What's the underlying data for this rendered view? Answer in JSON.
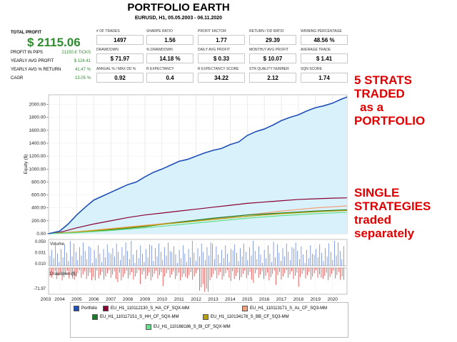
{
  "header": {
    "title": "PORTFOLIO EARTH",
    "subtitle": "EURUSD, H1, 05.05.2003 - 06.11.2020"
  },
  "summary": {
    "total_profit_label": "TOTAL PROFIT",
    "total_profit_value": "$ 2115.06",
    "rows": [
      {
        "label": "PROFIT IN PIPS",
        "value": "21150.6 TICKS"
      },
      {
        "label": "YEARLY AVG PROFIT",
        "value": "$ 124.41"
      },
      {
        "label": "YEARLY AVG % RETURN",
        "value": "41.47 %"
      },
      {
        "label": "CAGR",
        "value": "13.05 %"
      }
    ]
  },
  "metrics": [
    {
      "label": "# OF TRADES",
      "value": "1497"
    },
    {
      "label": "SHARPE RATIO",
      "value": "1.56"
    },
    {
      "label": "PROFIT FACTOR",
      "value": "1.77"
    },
    {
      "label": "RETURN / DD RATIO",
      "value": "29.39"
    },
    {
      "label": "WINNING PERCENTAGE",
      "value": "48.56 %"
    },
    {
      "label": "DRAWDOWN",
      "value": "$ 71.97"
    },
    {
      "label": "% DRAWDOWN",
      "value": "14.18 %"
    },
    {
      "label": "DAILY AVG PROFIT",
      "value": "$ 0.33"
    },
    {
      "label": "MONTHLY AVG PROFIT",
      "value": "$ 10.07"
    },
    {
      "label": "AVERAGE TRADE",
      "value": "$ 1.41"
    },
    {
      "label": "ANNUAL % / MAX DD %",
      "value": "0.92"
    },
    {
      "label": "R EXPECTANCY",
      "value": "0.4"
    },
    {
      "label": "R EXPECTANCY SCORE",
      "value": "34.22"
    },
    {
      "label": "STR QUALITY NUMBER",
      "value": "2.12"
    },
    {
      "label": "SQN SCORE",
      "value": "1.74"
    }
  ],
  "annotations": {
    "portfolio": [
      "5 STRATS",
      "TRADED",
      "as a",
      "PORTFOLIO"
    ],
    "single": [
      "SINGLE",
      "STRATEGIES",
      "traded",
      "separately"
    ]
  },
  "chart_data": {
    "type": "line",
    "ylabel": "Equity ($)",
    "y_ticks": [
      "0.00",
      "200.00",
      "400.00",
      "600.00",
      "800.00",
      "1000.00",
      "1200.00",
      "1400.00",
      "1600.00",
      "1800.00",
      "2000.00"
    ],
    "ylim": [
      0,
      2150
    ],
    "x_range": [
      2003.35,
      2020.85
    ],
    "x_ticks": [
      "2003",
      "2004",
      "2005",
      "2006",
      "2007",
      "2008",
      "2009",
      "2010",
      "2011",
      "2012",
      "2013",
      "2014",
      "2015",
      "2016",
      "2017",
      "2018",
      "2019",
      "2020"
    ],
    "series": [
      {
        "name": "Portfolio",
        "color": "#1f4fb4",
        "x": [
          2003.35,
          2004.0,
          2004.5,
          2005.0,
          2005.5,
          2006.0,
          2006.5,
          2007.0,
          2007.5,
          2008.0,
          2008.5,
          2009.0,
          2009.5,
          2010.0,
          2010.5,
          2011.0,
          2011.5,
          2012.0,
          2012.5,
          2013.0,
          2013.5,
          2014.0,
          2014.5,
          2015.0,
          2015.5,
          2016.0,
          2016.5,
          2017.0,
          2017.5,
          2018.0,
          2018.5,
          2019.0,
          2019.5,
          2020.0,
          2020.5,
          2020.85
        ],
        "y": [
          0,
          40,
          150,
          290,
          410,
          520,
          580,
          640,
          700,
          760,
          800,
          880,
          950,
          1000,
          1060,
          1120,
          1150,
          1200,
          1250,
          1290,
          1320,
          1380,
          1420,
          1520,
          1580,
          1620,
          1680,
          1750,
          1800,
          1840,
          1900,
          1950,
          1980,
          2020,
          2080,
          2115
        ]
      },
      {
        "name": "EU_H1_110112130_S_HA_CF_SQX-MM",
        "color": "#8b0033",
        "x": [
          2003.35,
          2004.0,
          2005.0,
          2006.0,
          2007.0,
          2008.0,
          2009.0,
          2010.0,
          2011.0,
          2012.0,
          2013.0,
          2014.0,
          2015.0,
          2016.0,
          2017.0,
          2018.0,
          2019.0,
          2020.0,
          2020.85
        ],
        "y": [
          0,
          20,
          90,
          150,
          200,
          250,
          290,
          320,
          350,
          380,
          410,
          440,
          470,
          490,
          510,
          530,
          540,
          550,
          555
        ]
      },
      {
        "name": "EU_H1_110113171_S_As_CF_SQ3-MM",
        "color": "#f4a07a",
        "x": [
          2003.35,
          2005.0,
          2007.0,
          2009.0,
          2011.0,
          2013.0,
          2015.0,
          2017.0,
          2019.0,
          2020.85
        ],
        "y": [
          0,
          30,
          80,
          130,
          180,
          230,
          290,
          350,
          400,
          430
        ]
      },
      {
        "name": "EU_H1_110117151_S_HH_CF_SQX-MM",
        "color": "#1a7a2a",
        "x": [
          2003.35,
          2005.0,
          2007.0,
          2009.0,
          2011.0,
          2013.0,
          2015.0,
          2017.0,
          2019.0,
          2020.85
        ],
        "y": [
          0,
          20,
          60,
          110,
          180,
          240,
          290,
          320,
          350,
          370
        ]
      },
      {
        "name": "EU_H1_110134178_S_BB_CF_SQ3-MM",
        "color": "#b5a000",
        "x": [
          2003.35,
          2005.0,
          2007.0,
          2009.0,
          2011.0,
          2013.0,
          2015.0,
          2017.0,
          2019.0,
          2020.85
        ],
        "y": [
          0,
          25,
          70,
          120,
          170,
          220,
          270,
          310,
          340,
          360
        ]
      },
      {
        "name": "EU_H1_110168186_S_Bl_CF_SQX-MM",
        "color": "#66e08a",
        "x": [
          2003.35,
          2005.0,
          2007.0,
          2009.0,
          2011.0,
          2013.0,
          2015.0,
          2017.0,
          2019.0,
          2020.85
        ],
        "y": [
          0,
          15,
          50,
          90,
          140,
          190,
          240,
          280,
          310,
          330
        ]
      }
    ],
    "volume": {
      "label": "Volume",
      "y_ticks": [
        "0.050",
        "0.031",
        "0.010"
      ]
    },
    "drawdown": {
      "label": "Drawdown ($)",
      "y_ticks": [
        "-71.97"
      ]
    },
    "grid": true,
    "legend_position": "bottom"
  }
}
